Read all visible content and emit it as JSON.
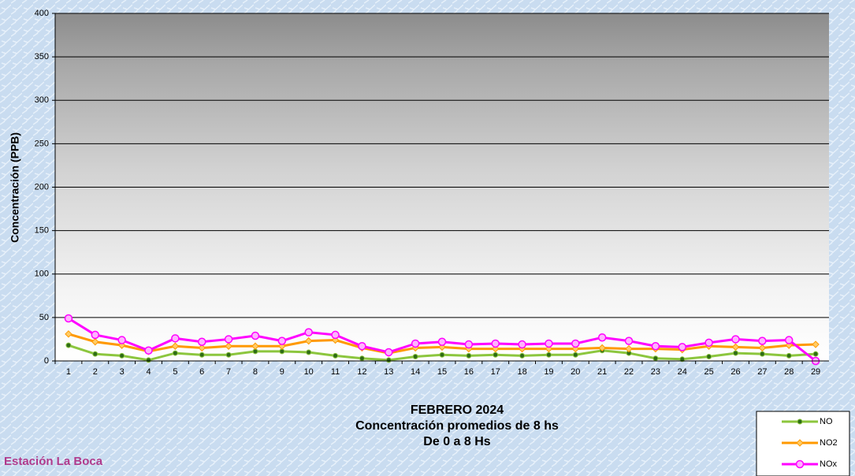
{
  "chart_data": {
    "type": "line",
    "title": [
      "FEBRERO 2024",
      "Concentración promedios de 8 hs",
      "De 0 a 8 Hs"
    ],
    "y_label": "Concentración  (PPB)",
    "annotation": "Estación La Boca",
    "categories": [
      "1",
      "2",
      "3",
      "4",
      "5",
      "6",
      "7",
      "8",
      "9",
      "10",
      "11",
      "12",
      "13",
      "14",
      "15",
      "16",
      "17",
      "18",
      "19",
      "20",
      "21",
      "22",
      "23",
      "24",
      "25",
      "26",
      "27",
      "28",
      "29"
    ],
    "series": [
      {
        "name": "NO",
        "color": "#8cc63e",
        "values": [
          18,
          8,
          6,
          1,
          9,
          7,
          7,
          11,
          11,
          10,
          6,
          3,
          1,
          5,
          7,
          6,
          7,
          6,
          7,
          7,
          12,
          9,
          3,
          2,
          5,
          9,
          8,
          6,
          8
        ]
      },
      {
        "name": "NO2",
        "color": "#ff9900",
        "values": [
          31,
          22,
          18,
          11,
          17,
          15,
          17,
          17,
          17,
          23,
          24,
          15,
          9,
          15,
          16,
          14,
          14,
          14,
          14,
          14,
          15,
          14,
          14,
          13,
          17,
          16,
          15,
          18,
          19
        ]
      },
      {
        "name": "NOx",
        "color": "#ff00ff",
        "values": [
          49,
          30,
          24,
          12,
          26,
          22,
          25,
          29,
          23,
          33,
          30,
          17,
          10,
          20,
          22,
          19,
          20,
          19,
          20,
          20,
          27,
          23,
          17,
          16,
          21,
          25,
          23,
          24,
          0
        ]
      }
    ],
    "ylim": [
      0,
      400
    ],
    "yticks": [
      0,
      50,
      100,
      150,
      200,
      250,
      300,
      350,
      400
    ],
    "grid": true,
    "legend": "bottom-right"
  }
}
